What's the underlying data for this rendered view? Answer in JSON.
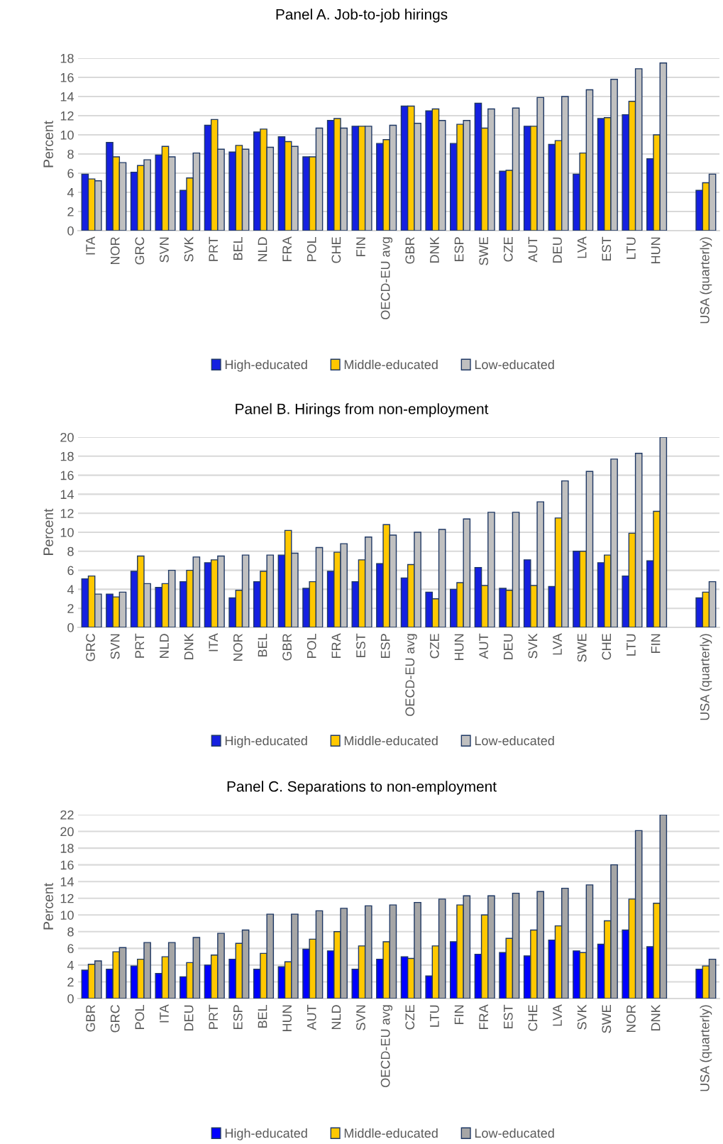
{
  "chart_data": [
    {
      "type": "bar",
      "title": "Panel A. Job-to-job hirings",
      "ylabel": "Percent",
      "categories": [
        "ITA",
        "NOR",
        "GRC",
        "SVN",
        "SVK",
        "PRT",
        "BEL",
        "NLD",
        "FRA",
        "POL",
        "CHE",
        "FIN",
        "OECD-EU avg",
        "GBR",
        "DNK",
        "ESP",
        "SWE",
        "CZE",
        "AUT",
        "DEU",
        "LVA",
        "EST",
        "LTU",
        "HUN",
        null,
        "USA (quarterly)"
      ],
      "series": [
        {
          "name": "High-educated",
          "color": "#1520e0",
          "values": [
            5.9,
            9.2,
            6.1,
            7.9,
            4.2,
            11.0,
            8.2,
            10.3,
            9.8,
            7.7,
            11.5,
            10.9,
            9.1,
            13.0,
            12.5,
            9.1,
            13.3,
            6.2,
            10.9,
            9.0,
            5.9,
            11.7,
            12.1,
            7.5,
            null,
            4.2
          ]
        },
        {
          "name": "Middle-educated",
          "color": "#ffc800",
          "values": [
            5.4,
            7.7,
            6.8,
            8.8,
            5.5,
            11.6,
            8.9,
            10.6,
            9.3,
            7.7,
            11.7,
            10.9,
            9.5,
            13.0,
            12.7,
            11.1,
            10.7,
            6.3,
            10.9,
            9.4,
            8.1,
            11.8,
            13.5,
            10.0,
            null,
            5.0
          ]
        },
        {
          "name": "Low-educated",
          "color": "#c0c0c0",
          "values": [
            5.2,
            7.1,
            7.4,
            7.7,
            8.1,
            8.5,
            8.5,
            8.7,
            8.8,
            10.7,
            10.7,
            10.9,
            11.0,
            11.2,
            11.5,
            11.5,
            12.7,
            12.8,
            13.9,
            14.0,
            14.7,
            15.8,
            16.9,
            17.5,
            null,
            5.9
          ]
        }
      ],
      "ylim": [
        0,
        18
      ],
      "yticks": [
        0,
        2,
        4,
        6,
        8,
        10,
        12,
        14,
        16,
        18
      ],
      "grid": "y",
      "legend": "bottom"
    },
    {
      "type": "bar",
      "title": "Panel B. Hirings from non-employment",
      "ylabel": "Percent",
      "categories": [
        "GRC",
        "SVN",
        "PRT",
        "NLD",
        "DNK",
        "ITA",
        "NOR",
        "BEL",
        "GBR",
        "POL",
        "FRA",
        "EST",
        "ESP",
        "OECD-EU avg",
        "CZE",
        "HUN",
        "AUT",
        "DEU",
        "SVK",
        "LVA",
        "SWE",
        "CHE",
        "LTU",
        "FIN",
        null,
        "USA (quarterly)"
      ],
      "series": [
        {
          "name": "High-educated",
          "color": "#1520e0",
          "values": [
            5.1,
            3.5,
            5.9,
            4.2,
            4.8,
            6.8,
            3.1,
            4.8,
            7.6,
            4.1,
            5.9,
            4.8,
            6.7,
            5.2,
            3.7,
            4.0,
            6.3,
            4.1,
            7.1,
            4.3,
            8.0,
            6.8,
            5.4,
            7.0,
            null,
            3.1
          ]
        },
        {
          "name": "Middle-educated",
          "color": "#ffc800",
          "values": [
            5.4,
            3.2,
            7.5,
            4.6,
            6.0,
            7.1,
            3.9,
            5.9,
            10.2,
            4.8,
            7.9,
            7.1,
            10.8,
            6.6,
            3.0,
            4.7,
            4.4,
            3.9,
            4.4,
            11.5,
            8.0,
            7.6,
            9.9,
            12.2,
            null,
            3.7
          ]
        },
        {
          "name": "Low-educated",
          "color": "#c0c0c0",
          "values": [
            3.5,
            3.7,
            4.6,
            6.0,
            7.4,
            7.5,
            7.6,
            7.6,
            7.8,
            8.4,
            8.8,
            9.5,
            9.7,
            10.0,
            10.3,
            11.4,
            12.1,
            12.1,
            13.2,
            15.4,
            16.4,
            17.7,
            18.3,
            20.0,
            null,
            4.8
          ]
        }
      ],
      "ylim": [
        0,
        20
      ],
      "yticks": [
        0,
        2,
        4,
        6,
        8,
        10,
        12,
        14,
        16,
        18,
        20
      ],
      "grid": "y",
      "legend": "bottom"
    },
    {
      "type": "bar",
      "title": "Panel C. Separations to non-employment",
      "ylabel": "Percent",
      "categories": [
        "GBR",
        "GRC",
        "POL",
        "ITA",
        "DEU",
        "PRT",
        "ESP",
        "BEL",
        "HUN",
        "AUT",
        "NLD",
        "SVN",
        "OECD-EU avg",
        "CZE",
        "LTU",
        "FIN",
        "FRA",
        "EST",
        "CHE",
        "LVA",
        "SVK",
        "SWE",
        "NOR",
        "DNK",
        null,
        "USA (quarterly)"
      ],
      "series": [
        {
          "name": "High-educated",
          "color": "#0000ff",
          "values": [
            3.4,
            3.5,
            3.9,
            3.0,
            2.6,
            4.0,
            4.7,
            3.5,
            3.8,
            5.9,
            5.7,
            3.5,
            4.7,
            5.0,
            2.7,
            6.8,
            5.3,
            5.5,
            5.1,
            7.0,
            5.7,
            6.5,
            8.2,
            6.2,
            null,
            3.5
          ]
        },
        {
          "name": "Middle-educated",
          "color": "#ffc800",
          "values": [
            4.1,
            5.6,
            4.7,
            5.0,
            4.3,
            5.2,
            6.6,
            5.4,
            4.4,
            7.1,
            8.0,
            6.3,
            6.8,
            4.8,
            6.3,
            11.2,
            10.0,
            7.2,
            8.2,
            8.7,
            5.5,
            9.3,
            11.9,
            11.4,
            null,
            3.9
          ]
        },
        {
          "name": "Low-educated",
          "color": "#a6a6a6",
          "values": [
            4.5,
            6.1,
            6.7,
            6.7,
            7.3,
            7.8,
            8.2,
            10.1,
            10.1,
            10.5,
            10.8,
            11.1,
            11.2,
            11.5,
            11.9,
            12.3,
            12.3,
            12.6,
            12.8,
            13.2,
            13.6,
            16.0,
            20.1,
            22.0,
            null,
            4.7
          ]
        }
      ],
      "ylim": [
        0,
        22
      ],
      "yticks": [
        0,
        2,
        4,
        6,
        8,
        10,
        12,
        14,
        16,
        18,
        20,
        22
      ],
      "grid": "y",
      "legend": "bottom"
    }
  ]
}
